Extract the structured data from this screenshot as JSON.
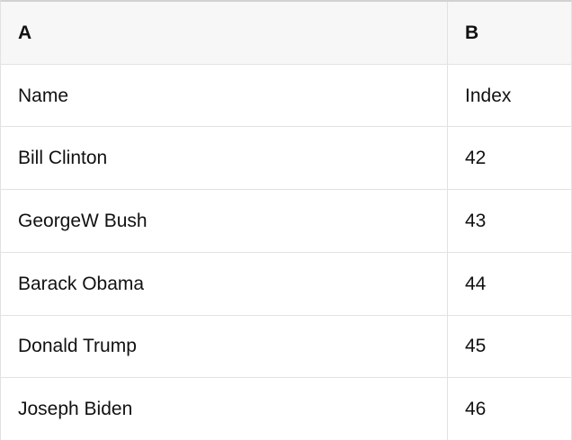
{
  "table": {
    "columns": [
      {
        "label": "A"
      },
      {
        "label": "B"
      }
    ],
    "rows": [
      {
        "cells": [
          "Name",
          "Index"
        ]
      },
      {
        "cells": [
          "Bill Clinton",
          "42"
        ]
      },
      {
        "cells": [
          "GeorgeW Bush",
          "43"
        ]
      },
      {
        "cells": [
          "Barack Obama",
          "44"
        ]
      },
      {
        "cells": [
          "Donald Trump",
          "45"
        ]
      },
      {
        "cells": [
          "Joseph Biden",
          "46"
        ]
      }
    ]
  },
  "colors": {
    "header_bg": "#f7f7f7",
    "row_bg": "#ffffff",
    "border": "#e2e2e2",
    "top_border": "#d2d2d2",
    "text": "#111111"
  }
}
